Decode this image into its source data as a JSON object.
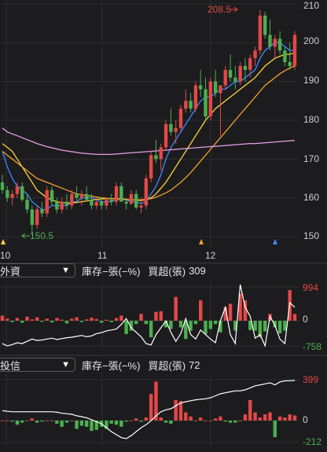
{
  "price_chart": {
    "y_axis_labels": [
      "210",
      "200",
      "190",
      "180",
      "170",
      "160",
      "150"
    ],
    "x_axis_labels": [
      "10",
      "11",
      "12"
    ],
    "high_annotation": "208.5",
    "low_annotation": "150.5",
    "colors": {
      "up": "#e34848",
      "down": "#4caf50",
      "ma5": "#3d8bff",
      "ma10": "#ffd23f",
      "ma20": "#f0a030",
      "ma60": "#e8a0e8"
    }
  },
  "foreign_panel": {
    "selector_label": "外資",
    "caret": "▼",
    "mode_text": "庫存−張(−%)",
    "value_label": "買超(張)",
    "value": "309",
    "axis_top": "994",
    "axis_zero": "0",
    "axis_bottom": "-758"
  },
  "trust_panel": {
    "selector_label": "投信",
    "caret": "▼",
    "mode_text": "庫存−張(−%)",
    "value_label": "買超(張)",
    "value": "72",
    "axis_top": "399",
    "axis_zero": "0",
    "axis_bottom": "-212"
  },
  "chart_data": {
    "type": "candlestick",
    "y_ticks": [
      150,
      160,
      170,
      180,
      190,
      200,
      210
    ],
    "ylim": [
      148,
      212
    ],
    "x_tick_labels": [
      "10",
      "11",
      "12"
    ],
    "annotations": [
      {
        "text": "208.5",
        "value": 208.5
      },
      {
        "text": "150.5",
        "value": 150.5
      }
    ],
    "ohlc": [
      [
        164,
        166,
        161,
        162
      ],
      [
        162,
        163,
        159,
        160
      ],
      [
        160,
        162,
        158,
        161
      ],
      [
        161,
        164,
        160,
        163
      ],
      [
        163,
        164,
        159,
        159.5
      ],
      [
        159.5,
        161,
        156,
        157
      ],
      [
        157,
        158,
        150.5,
        153
      ],
      [
        153,
        158,
        152,
        157
      ],
      [
        157,
        159,
        155,
        156
      ],
      [
        156,
        163,
        155,
        162
      ],
      [
        162,
        163,
        158,
        159
      ],
      [
        159,
        160,
        156,
        157
      ],
      [
        157,
        160,
        156,
        159
      ],
      [
        159,
        161,
        157,
        158
      ],
      [
        158,
        162,
        157,
        161
      ],
      [
        161,
        163,
        159,
        160
      ],
      [
        160,
        162,
        158,
        161
      ],
      [
        161,
        163,
        159,
        159.5
      ],
      [
        159.5,
        161,
        157,
        158
      ],
      [
        158,
        160,
        157,
        159
      ],
      [
        159,
        160,
        157,
        158
      ],
      [
        158,
        160,
        157,
        159.5
      ],
      [
        159.5,
        161,
        158,
        159
      ],
      [
        159,
        164,
        158,
        163
      ],
      [
        163,
        164,
        159,
        159
      ],
      [
        159,
        160,
        157,
        158.5
      ],
      [
        158.5,
        162,
        158,
        161
      ],
      [
        161,
        162,
        157,
        157.5
      ],
      [
        157.5,
        160,
        156,
        158
      ],
      [
        158,
        166,
        157,
        165
      ],
      [
        165,
        172,
        164,
        171
      ],
      [
        171,
        175,
        169,
        170
      ],
      [
        170,
        174,
        167,
        173
      ],
      [
        173,
        180,
        172,
        179
      ],
      [
        179,
        183,
        176,
        177
      ],
      [
        177,
        180,
        174,
        178
      ],
      [
        178,
        184,
        177,
        183
      ],
      [
        183,
        188,
        182,
        185
      ],
      [
        185,
        187,
        182,
        183
      ],
      [
        183,
        190,
        182,
        189
      ],
      [
        189,
        193,
        186,
        188
      ],
      [
        188,
        191,
        180,
        181
      ],
      [
        181,
        191,
        180,
        190
      ],
      [
        190,
        193,
        186,
        187
      ],
      [
        187,
        189,
        176,
        189
      ],
      [
        189,
        194,
        188,
        193
      ],
      [
        193,
        197,
        190,
        191
      ],
      [
        191,
        194,
        188,
        190
      ],
      [
        190,
        195,
        189,
        194
      ],
      [
        194,
        196,
        190,
        193
      ],
      [
        193,
        197,
        191,
        196
      ],
      [
        196,
        199,
        194,
        198
      ],
      [
        198,
        208.5,
        197,
        207
      ],
      [
        207,
        208,
        201,
        202
      ],
      [
        202,
        206,
        198,
        199
      ],
      [
        199,
        202,
        196,
        201
      ],
      [
        201,
        203,
        197,
        198
      ],
      [
        198,
        199,
        194,
        195
      ],
      [
        195,
        200,
        193,
        194
      ],
      [
        194,
        203,
        193,
        202
      ]
    ],
    "moving_averages": [
      {
        "name": "MA5",
        "color": "#3d8bff",
        "values": [
          172,
          168,
          165,
          163,
          162,
          161,
          159,
          158,
          157,
          157,
          158,
          158,
          158,
          158,
          159,
          159,
          160,
          160,
          160,
          159.5,
          159,
          159,
          159,
          159.5,
          160,
          159.5,
          159,
          159,
          158.5,
          159,
          161,
          163,
          166,
          170,
          173,
          175,
          177,
          179,
          181,
          183,
          185,
          186,
          186,
          187,
          188,
          188,
          189,
          190,
          190,
          191,
          192,
          193,
          196,
          198,
          199,
          200,
          200,
          199,
          198,
          198
        ]
      },
      {
        "name": "MA10",
        "color": "#ffd23f",
        "values": [
          174,
          173,
          172,
          170,
          168,
          166,
          164,
          162,
          161,
          160,
          159.5,
          159,
          158.8,
          158.7,
          158.7,
          158.8,
          159,
          159.2,
          159.4,
          159.6,
          159.7,
          159.8,
          159.8,
          159.8,
          159.7,
          159.6,
          159.5,
          159.4,
          159.3,
          159.5,
          160,
          161,
          162.5,
          164,
          166,
          168,
          170,
          172,
          174,
          176,
          178,
          180,
          181.5,
          183,
          184,
          185,
          186,
          187,
          188,
          189,
          190,
          191,
          192.5,
          194,
          195,
          196,
          196.5,
          197,
          197,
          197.5
        ]
      },
      {
        "name": "MA20",
        "color": "#f0a030",
        "values": [
          172,
          171,
          170,
          169,
          168,
          167,
          166,
          165,
          164.5,
          164,
          163.5,
          163,
          162.5,
          162,
          161.5,
          161,
          160.8,
          160.6,
          160.4,
          160.2,
          160,
          159.9,
          159.8,
          159.7,
          159.6,
          159.5,
          159.5,
          159.5,
          159.5,
          159.6,
          159.8,
          160.2,
          160.7,
          161.3,
          162,
          163,
          164,
          165.2,
          166.5,
          168,
          169.5,
          171,
          172.5,
          174,
          175.5,
          177,
          178.5,
          180,
          181.5,
          183,
          184.5,
          186,
          187.5,
          189,
          190,
          191,
          192,
          192.8,
          193.5,
          194
        ]
      },
      {
        "name": "MA60",
        "color": "#e8a0e8",
        "values": [
          178,
          177,
          176.5,
          176,
          175.5,
          175,
          174.5,
          174,
          173.6,
          173.2,
          172.9,
          172.6,
          172.3,
          172.1,
          171.9,
          171.7,
          171.5,
          171.4,
          171.3,
          171.2,
          171.2,
          171.2,
          171.2,
          171.3,
          171.4,
          171.5,
          171.6,
          171.7,
          171.8,
          171.9,
          172,
          172.1,
          172.2,
          172.3,
          172.4,
          172.5,
          172.6,
          172.7,
          172.8,
          172.9,
          173,
          173.1,
          173.2,
          173.3,
          173.4,
          173.5,
          173.6,
          173.7,
          173.8,
          173.9,
          174,
          174,
          174.1,
          174.2,
          174.3,
          174.4,
          174.5,
          174.6,
          174.7,
          174.8
        ]
      }
    ],
    "foreign_net_buy": [
      150,
      60,
      -40,
      80,
      -60,
      120,
      40,
      100,
      -30,
      60,
      -50,
      80,
      30,
      -80,
      60,
      100,
      -40,
      40,
      90,
      50,
      -60,
      30,
      -40,
      80,
      150,
      -400,
      -300,
      -100,
      200,
      -100,
      -500,
      260,
      280,
      -200,
      -250,
      700,
      -200,
      -550,
      -300,
      -100,
      600,
      -400,
      -250,
      -100,
      -350,
      400,
      500,
      -300,
      800,
      600,
      -280,
      -300,
      -500,
      -320,
      200,
      -200,
      -380,
      -300,
      900,
      200
    ],
    "foreign_holding": [
      -400,
      -450,
      -420,
      -380,
      -400,
      -350,
      -300,
      -330,
      -320,
      -300,
      -280,
      -310,
      -290,
      -270,
      -260,
      -240,
      -220,
      -250,
      -230,
      -180,
      -160,
      -120,
      -100,
      -80,
      20,
      150,
      -50,
      -150,
      -250,
      -400,
      -430,
      -200,
      -50,
      100,
      -150,
      -350,
      -180,
      150,
      -200,
      -300,
      -100,
      -200,
      -300,
      -380,
      100,
      400,
      -200,
      -400,
      900,
      400,
      200,
      -280,
      -200,
      -450,
      200,
      0,
      -300,
      -400,
      500,
      400
    ],
    "trust_net_buy": [
      0,
      0,
      -10,
      -40,
      -20,
      0,
      20,
      -20,
      -10,
      0,
      0,
      -30,
      -60,
      -20,
      0,
      -80,
      -50,
      -60,
      -100,
      -90,
      -60,
      -80,
      -30,
      -40,
      -60,
      -10,
      0,
      20,
      -10,
      30,
      260,
      380,
      30,
      -20,
      -30,
      200,
      190,
      80,
      40,
      0,
      30,
      0,
      0,
      20,
      40,
      -10,
      -20,
      -20,
      0,
      60,
      200,
      80,
      30,
      60,
      80,
      -160,
      40,
      30,
      60,
      50
    ],
    "trust_holding": [
      70,
      65,
      60,
      60,
      60,
      60,
      60,
      60,
      60,
      60,
      60,
      55,
      45,
      40,
      35,
      20,
      10,
      0,
      -20,
      -40,
      -60,
      -100,
      -140,
      -170,
      -200,
      -210,
      -180,
      -140,
      -100,
      -70,
      -30,
      20,
      60,
      80,
      90,
      120,
      150,
      160,
      170,
      180,
      185,
      190,
      200,
      220,
      240,
      250,
      260,
      270,
      270,
      280,
      300,
      320,
      330,
      340,
      350,
      330,
      360,
      370,
      372,
      374
    ]
  }
}
